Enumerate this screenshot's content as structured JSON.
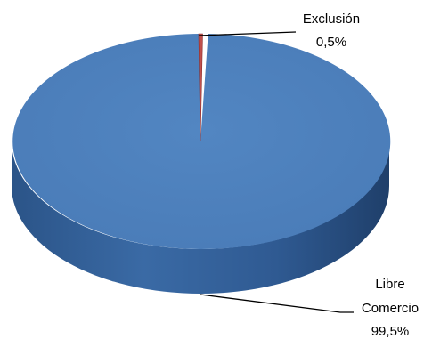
{
  "chart_data": {
    "type": "pie",
    "style": "3d",
    "title": "",
    "slices": [
      {
        "name": "Exclusión",
        "value": 0.5,
        "label": "0,5%",
        "color": "#c0504d"
      },
      {
        "name": "Libre Comercio",
        "value": 99.5,
        "label": "99,5%",
        "color": "#4f81bd"
      }
    ],
    "annotations": {
      "exclusion": {
        "line1": "Exclusión",
        "line2": "0,5%"
      },
      "libre": {
        "line1": "Libre",
        "line2": "Comercio",
        "line3": "99,5%"
      }
    }
  }
}
